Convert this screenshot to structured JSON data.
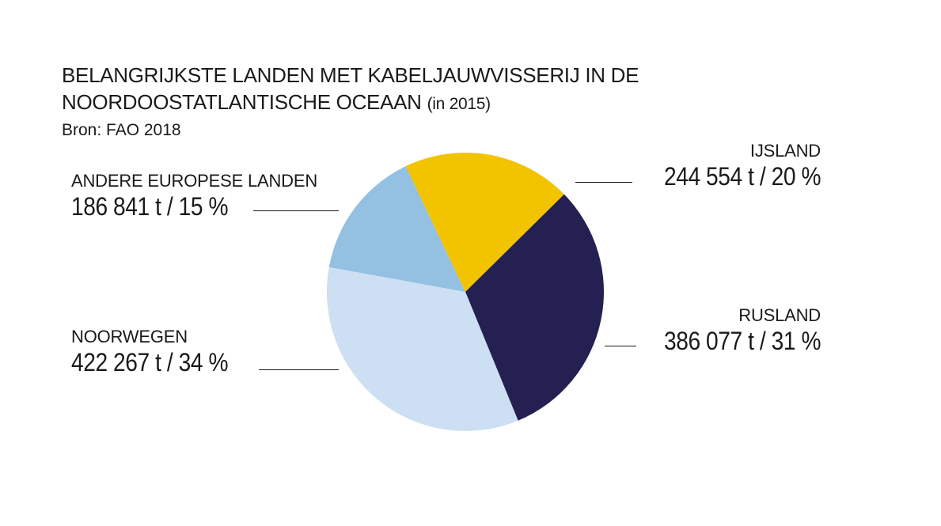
{
  "title": {
    "line1": "BELANGRIJKSTE LANDEN MET KABELJAUWVISSERIJ IN DE",
    "line2": "NOORDOOSTATLANTISCHE OCEAAN",
    "note": "(in 2015)"
  },
  "source": "Bron: FAO 2018",
  "colors": {
    "ijsland": "#f2c400",
    "rusland": "#242052",
    "noorwegen": "#cddff2",
    "andere": "#94c0e1"
  },
  "chart_data": {
    "type": "pie",
    "title": "BELANGRIJKSTE LANDEN MET KABELJAUWVISSERIJ IN DE NOORDOOSTATLANTISCHE OCEAAN (in 2015)",
    "unit": "t",
    "slices": [
      {
        "label": "IJSLAND",
        "value": 244554,
        "percent": 20,
        "value_text": "244 554 t / 20 %",
        "color": "#f2c400"
      },
      {
        "label": "RUSLAND",
        "value": 386077,
        "percent": 31,
        "value_text": "386 077 t / 31 %",
        "color": "#242052"
      },
      {
        "label": "NOORWEGEN",
        "value": 422267,
        "percent": 34,
        "value_text": "422 267 t / 34 %",
        "color": "#cddff2"
      },
      {
        "label": "ANDERE EUROPESE LANDEN",
        "value": 186841,
        "percent": 15,
        "value_text": "186 841 t / 15 %",
        "color": "#94c0e1"
      }
    ]
  }
}
